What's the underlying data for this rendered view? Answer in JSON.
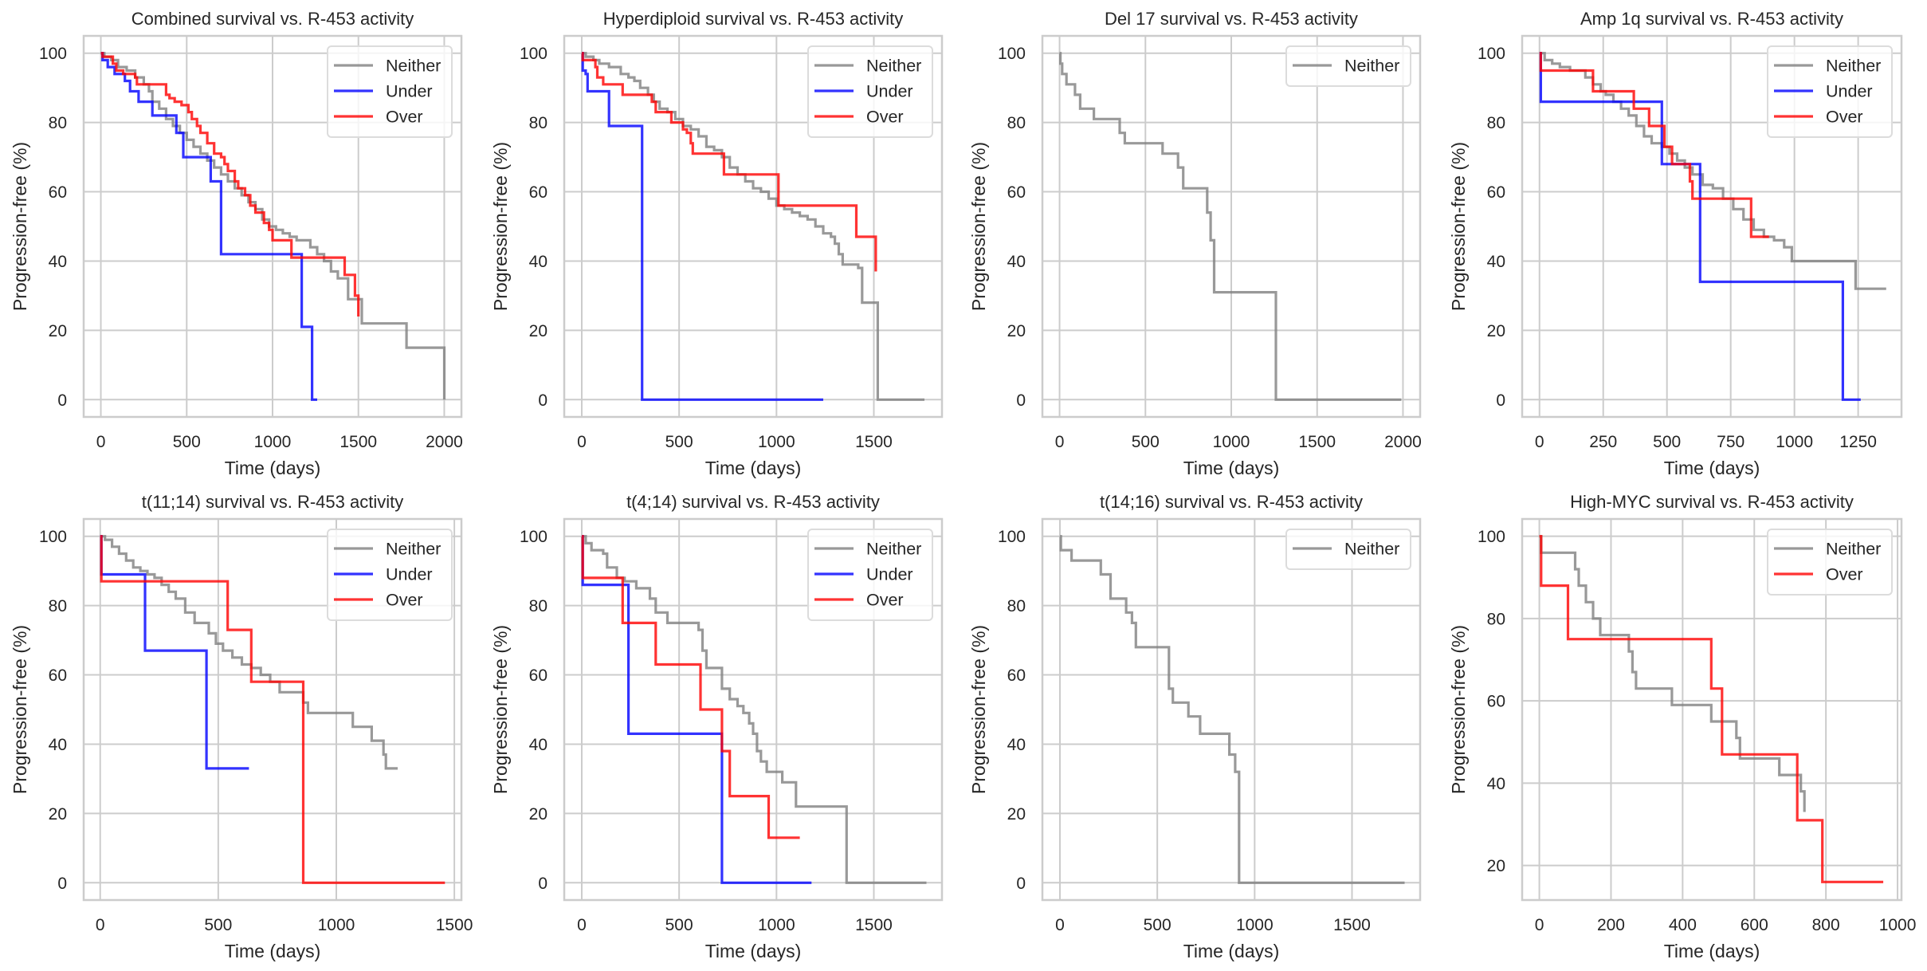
{
  "figure": {
    "background": "#ffffff"
  },
  "colors": {
    "Neither": "#808080",
    "Under": "#0000ff",
    "Over": "#ff0000"
  },
  "chart_data": [
    {
      "type": "line",
      "title": "Combined survival vs. R-453 activity",
      "xlabel": "Time (days)",
      "ylabel": "Progression-free (%)",
      "xlim": [
        -100,
        2100
      ],
      "ylim": [
        -5,
        105
      ],
      "xticks": [
        0,
        500,
        1000,
        1500,
        2000
      ],
      "yticks": [
        0,
        20,
        40,
        60,
        80,
        100
      ],
      "grid": true,
      "legend": "top-right",
      "series": [
        {
          "name": "Neither",
          "x": [
            0,
            20,
            60,
            100,
            150,
            200,
            250,
            280,
            300,
            340,
            380,
            420,
            460,
            500,
            540,
            580,
            620,
            660,
            700,
            740,
            780,
            820,
            860,
            900,
            940,
            980,
            1020,
            1060,
            1100,
            1140,
            1180,
            1220,
            1260,
            1300,
            1340,
            1380,
            1420,
            1440,
            1500,
            1520,
            1760,
            1780,
            2000
          ],
          "y": [
            100,
            99,
            98,
            96,
            95,
            93,
            91,
            89,
            86,
            84,
            81,
            79,
            77,
            75,
            73,
            71,
            69,
            67,
            65,
            63,
            61,
            59,
            57,
            55,
            52,
            50,
            49,
            48,
            47,
            46,
            46,
            44,
            42,
            40,
            37,
            35,
            35,
            29,
            29,
            22,
            22,
            15,
            0
          ]
        },
        {
          "name": "Under",
          "x": [
            0,
            10,
            40,
            80,
            140,
            170,
            220,
            300,
            440,
            480,
            640,
            700,
            1170,
            1230,
            1260
          ],
          "y": [
            100,
            98,
            96,
            94,
            92,
            89,
            86,
            82,
            77,
            70,
            63,
            42,
            21,
            0,
            0
          ]
        },
        {
          "name": "Over",
          "x": [
            0,
            10,
            70,
            90,
            130,
            200,
            210,
            360,
            380,
            400,
            430,
            470,
            510,
            530,
            560,
            580,
            620,
            660,
            700,
            720,
            740,
            780,
            800,
            840,
            870,
            900,
            950,
            980,
            1000,
            1100,
            1110,
            1400,
            1420,
            1480,
            1500
          ],
          "y": [
            100,
            99,
            97,
            95,
            94,
            93,
            91,
            91,
            88,
            87,
            86,
            85,
            83,
            81,
            79,
            77,
            74,
            71,
            70,
            68,
            66,
            63,
            61,
            59,
            56,
            54,
            51,
            49,
            46,
            46,
            41,
            41,
            36,
            30,
            24
          ]
        }
      ]
    },
    {
      "type": "line",
      "title": "Hyperdiploid survival vs. R-453 activity",
      "xlabel": "Time (days)",
      "ylabel": "Progression-free (%)",
      "xlim": [
        -90,
        1850
      ],
      "ylim": [
        -5,
        105
      ],
      "xticks": [
        0,
        500,
        1000,
        1500
      ],
      "yticks": [
        0,
        20,
        40,
        60,
        80,
        100
      ],
      "grid": true,
      "legend": "top-right",
      "series": [
        {
          "name": "Neither",
          "x": [
            0,
            20,
            60,
            90,
            140,
            200,
            240,
            270,
            300,
            340,
            370,
            400,
            440,
            480,
            520,
            560,
            600,
            640,
            680,
            720,
            760,
            800,
            840,
            880,
            920,
            960,
            1000,
            1040,
            1080,
            1120,
            1160,
            1200,
            1240,
            1280,
            1300,
            1320,
            1340,
            1420,
            1440,
            1510,
            1520,
            1760
          ],
          "y": [
            100,
            99,
            98,
            97,
            96,
            94,
            93,
            92,
            90,
            88,
            86,
            84,
            83,
            81,
            79,
            78,
            76,
            73,
            72,
            70,
            67,
            65,
            63,
            61,
            60,
            58,
            56,
            55,
            54,
            53,
            52,
            50,
            48,
            47,
            45,
            42,
            39,
            38,
            28,
            28,
            0,
            0
          ]
        },
        {
          "name": "Under",
          "x": [
            0,
            5,
            20,
            30,
            140,
            300,
            310,
            1240
          ],
          "y": [
            100,
            95,
            94,
            89,
            79,
            79,
            0,
            0
          ]
        },
        {
          "name": "Over",
          "x": [
            0,
            5,
            60,
            70,
            80,
            110,
            130,
            210,
            220,
            360,
            380,
            440,
            460,
            510,
            520,
            540,
            560,
            570,
            720,
            730,
            1000,
            1010,
            1400,
            1410,
            1500,
            1510
          ],
          "y": [
            100,
            98,
            98,
            96,
            93,
            91,
            91,
            88,
            88,
            86,
            83,
            83,
            80,
            80,
            78,
            77,
            74,
            71,
            71,
            65,
            65,
            56,
            56,
            47,
            47,
            37
          ]
        }
      ]
    },
    {
      "type": "line",
      "title": "Del 17 survival vs. R-453 activity",
      "xlabel": "Time (days)",
      "ylabel": "Progression-free (%)",
      "xlim": [
        -100,
        2100
      ],
      "ylim": [
        -5,
        105
      ],
      "xticks": [
        0,
        500,
        1000,
        1500,
        2000
      ],
      "yticks": [
        0,
        20,
        40,
        60,
        80,
        100
      ],
      "grid": true,
      "legend": "top-right",
      "series": [
        {
          "name": "Neither",
          "x": [
            0,
            5,
            15,
            40,
            90,
            120,
            200,
            350,
            380,
            600,
            690,
            720,
            860,
            880,
            900,
            1260,
            1990
          ],
          "y": [
            100,
            97,
            94,
            91,
            88,
            84,
            81,
            77,
            74,
            71,
            67,
            61,
            54,
            46,
            31,
            0,
            0
          ]
        }
      ]
    },
    {
      "type": "line",
      "title": "Amp 1q survival vs. R-453 activity",
      "xlabel": "Time (days)",
      "ylabel": "Progression-free (%)",
      "xlim": [
        -68,
        1420
      ],
      "ylim": [
        -5,
        105
      ],
      "xticks": [
        0,
        250,
        500,
        750,
        1000,
        1250
      ],
      "yticks": [
        0,
        20,
        40,
        60,
        80,
        100
      ],
      "grid": true,
      "legend": "top-right",
      "series": [
        {
          "name": "Neither",
          "x": [
            0,
            20,
            50,
            80,
            120,
            150,
            180,
            210,
            240,
            260,
            290,
            320,
            350,
            380,
            410,
            440,
            480,
            510,
            540,
            570,
            600,
            640,
            680,
            720,
            760,
            800,
            840,
            880,
            920,
            960,
            990,
            1230,
            1240,
            1360
          ],
          "y": [
            100,
            98,
            97,
            96,
            95,
            95,
            93,
            91,
            89,
            88,
            86,
            84,
            82,
            79,
            76,
            74,
            73,
            71,
            69,
            67,
            65,
            62,
            61,
            58,
            55,
            52,
            49,
            47,
            46,
            44,
            40,
            40,
            32,
            32
          ]
        },
        {
          "name": "Under",
          "x": [
            0,
            5,
            470,
            480,
            620,
            630,
            1180,
            1190,
            1260
          ],
          "y": [
            100,
            86,
            86,
            68,
            68,
            34,
            34,
            0,
            0
          ]
        },
        {
          "name": "Over",
          "x": [
            0,
            5,
            200,
            210,
            360,
            370,
            420,
            430,
            480,
            490,
            520,
            530,
            590,
            600,
            820,
            830,
            900
          ],
          "y": [
            100,
            95,
            95,
            89,
            89,
            84,
            84,
            79,
            79,
            73,
            68,
            68,
            63,
            58,
            58,
            47,
            47
          ]
        }
      ]
    },
    {
      "type": "line",
      "title": "t(11;14) survival vs. R-453 activity",
      "xlabel": "Time (days)",
      "ylabel": "Progression-free (%)",
      "xlim": [
        -70,
        1530
      ],
      "ylim": [
        -5,
        105
      ],
      "xticks": [
        0,
        500,
        1000,
        1500
      ],
      "yticks": [
        0,
        20,
        40,
        60,
        80,
        100
      ],
      "grid": true,
      "legend": "top-right",
      "series": [
        {
          "name": "Neither",
          "x": [
            0,
            20,
            50,
            80,
            110,
            140,
            170,
            200,
            230,
            260,
            290,
            320,
            360,
            400,
            430,
            460,
            490,
            520,
            560,
            600,
            640,
            680,
            720,
            760,
            820,
            860,
            880,
            1060,
            1070,
            1140,
            1150,
            1200,
            1210,
            1260
          ],
          "y": [
            100,
            99,
            97,
            95,
            93,
            91,
            90,
            89,
            88,
            86,
            84,
            82,
            78,
            75,
            75,
            72,
            69,
            67,
            65,
            63,
            62,
            60,
            58,
            55,
            55,
            52,
            49,
            49,
            45,
            45,
            41,
            37,
            33,
            33
          ]
        },
        {
          "name": "Under",
          "x": [
            0,
            5,
            180,
            190,
            440,
            450,
            630
          ],
          "y": [
            100,
            89,
            89,
            67,
            67,
            33,
            33
          ]
        },
        {
          "name": "Over",
          "x": [
            0,
            5,
            530,
            540,
            630,
            640,
            850,
            860,
            1460
          ],
          "y": [
            100,
            87,
            87,
            73,
            73,
            58,
            58,
            0,
            0
          ]
        }
      ]
    },
    {
      "type": "line",
      "title": "t(4;14) survival vs. R-453 activity",
      "xlabel": "Time (days)",
      "ylabel": "Progression-free (%)",
      "xlim": [
        -90,
        1850
      ],
      "ylim": [
        -5,
        105
      ],
      "xticks": [
        0,
        500,
        1000,
        1500
      ],
      "yticks": [
        0,
        20,
        40,
        60,
        80,
        100
      ],
      "grid": true,
      "legend": "top-right",
      "series": [
        {
          "name": "Neither",
          "x": [
            0,
            20,
            50,
            110,
            130,
            180,
            220,
            280,
            350,
            380,
            440,
            560,
            600,
            620,
            640,
            700,
            720,
            760,
            800,
            830,
            860,
            880,
            900,
            920,
            950,
            1030,
            1090,
            1100,
            1350,
            1360,
            1770
          ],
          "y": [
            100,
            98,
            96,
            95,
            91,
            88,
            87,
            85,
            82,
            78,
            75,
            75,
            73,
            67,
            62,
            62,
            56,
            53,
            51,
            49,
            46,
            43,
            38,
            35,
            32,
            29,
            29,
            22,
            22,
            0,
            0
          ]
        },
        {
          "name": "Under",
          "x": [
            0,
            5,
            230,
            240,
            710,
            720,
            1180
          ],
          "y": [
            100,
            86,
            86,
            43,
            43,
            0,
            0
          ]
        },
        {
          "name": "Over",
          "x": [
            0,
            5,
            200,
            210,
            370,
            380,
            600,
            610,
            710,
            720,
            750,
            760,
            950,
            960,
            1120
          ],
          "y": [
            100,
            88,
            88,
            75,
            75,
            63,
            63,
            50,
            50,
            38,
            38,
            25,
            25,
            13,
            13
          ]
        }
      ]
    },
    {
      "type": "line",
      "title": "t(14;16) survival vs. R-453 activity",
      "xlabel": "Time (days)",
      "ylabel": "Progression-free (%)",
      "xlim": [
        -90,
        1850
      ],
      "ylim": [
        -5,
        105
      ],
      "xticks": [
        0,
        500,
        1000,
        1500
      ],
      "yticks": [
        0,
        20,
        40,
        60,
        80,
        100
      ],
      "grid": true,
      "legend": "top-right",
      "series": [
        {
          "name": "Neither",
          "x": [
            0,
            5,
            60,
            210,
            260,
            340,
            370,
            390,
            540,
            560,
            580,
            660,
            720,
            870,
            900,
            920,
            1770
          ],
          "y": [
            100,
            96,
            93,
            89,
            82,
            78,
            75,
            68,
            68,
            56,
            52,
            48,
            43,
            37,
            32,
            0,
            0
          ]
        }
      ]
    },
    {
      "type": "line",
      "title": "High-MYC survival vs. R-453 activity",
      "xlabel": "Time (days)",
      "ylabel": "Progression-free (%)",
      "xlim": [
        -48,
        1011
      ],
      "ylim": [
        11.6,
        104.2
      ],
      "xticks": [
        0,
        200,
        400,
        600,
        800,
        1000
      ],
      "yticks": [
        20,
        40,
        60,
        80,
        100
      ],
      "grid": true,
      "legend": "top-right",
      "series": [
        {
          "name": "Neither",
          "x": [
            0,
            5,
            60,
            100,
            110,
            130,
            150,
            170,
            250,
            260,
            270,
            370,
            480,
            550,
            560,
            670,
            730,
            740
          ],
          "y": [
            100,
            96,
            96,
            92,
            88,
            84,
            80,
            76,
            72,
            67,
            63,
            59,
            55,
            51,
            46,
            42,
            38,
            33
          ]
        },
        {
          "name": "Over",
          "x": [
            0,
            5,
            70,
            80,
            470,
            480,
            500,
            510,
            710,
            720,
            780,
            790,
            960
          ],
          "y": [
            100,
            88,
            88,
            75,
            75,
            63,
            63,
            47,
            47,
            31,
            31,
            16,
            16
          ]
        }
      ]
    }
  ]
}
